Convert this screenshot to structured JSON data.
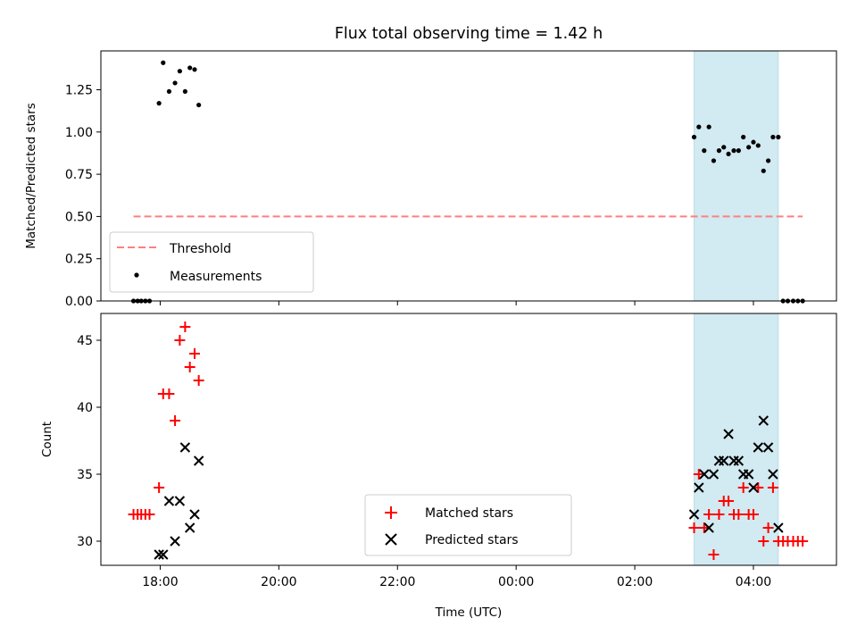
{
  "figure": {
    "title": "Flux total observing time = 1.42 h"
  },
  "chart_data": [
    {
      "type": "scatter",
      "ylabel": "Matched/Predicted stars",
      "ylim": [
        0,
        1.48
      ],
      "yticks": [
        0.0,
        0.25,
        0.5,
        0.75,
        1.0,
        1.25
      ],
      "ytick_labels": [
        "0.00",
        "0.25",
        "0.50",
        "0.75",
        "1.00",
        "1.25"
      ],
      "xlim_hours": [
        17.0,
        29.4
      ],
      "xticks_hours": [
        18,
        20,
        22,
        24,
        26,
        28
      ],
      "shaded_span_hours": [
        27.0,
        28.42
      ],
      "shade_color": "#add8e6",
      "threshold": {
        "name": "Threshold",
        "value": 0.5,
        "x_start": 17.55,
        "x_end": 28.83,
        "color": "#ff7f7f"
      },
      "series": [
        {
          "name": "Measurements",
          "color": "#000000",
          "x": [
            17.55,
            17.62,
            17.68,
            17.75,
            17.82,
            17.98,
            18.05,
            18.15,
            18.25,
            18.33,
            18.42,
            18.5,
            18.58,
            18.65,
            27.0,
            27.08,
            27.17,
            27.25,
            27.33,
            27.42,
            27.5,
            27.58,
            27.67,
            27.75,
            27.83,
            27.92,
            28.0,
            28.08,
            28.17,
            28.25,
            28.33,
            28.42,
            28.5,
            28.58,
            28.67,
            28.75,
            28.83
          ],
          "y": [
            0,
            0,
            0,
            0,
            0,
            1.17,
            1.41,
            1.24,
            1.29,
            1.36,
            1.24,
            1.38,
            1.37,
            1.16,
            0.97,
            1.03,
            0.89,
            1.03,
            0.83,
            0.89,
            0.91,
            0.87,
            0.89,
            0.89,
            0.97,
            0.91,
            0.94,
            0.92,
            0.77,
            0.83,
            0.97,
            0.97,
            0,
            0,
            0,
            0,
            0
          ]
        }
      ],
      "legend": {
        "placement": "lower-left",
        "entries": [
          "Threshold",
          "Measurements"
        ]
      }
    },
    {
      "type": "scatter",
      "xlabel": "Time (UTC)",
      "ylabel": "Count",
      "ylim": [
        28.2,
        47.0
      ],
      "yticks": [
        30,
        35,
        40,
        45
      ],
      "xlim_hours": [
        17.0,
        29.4
      ],
      "xticks_hours": [
        18,
        20,
        22,
        24,
        26,
        28
      ],
      "xtick_labels": [
        "18:00",
        "20:00",
        "22:00",
        "00:00",
        "02:00",
        "04:00"
      ],
      "shaded_span_hours": [
        27.0,
        28.42
      ],
      "shade_color": "#add8e6",
      "series": [
        {
          "name": "Matched stars",
          "marker": "plus",
          "color": "#ff0000",
          "x": [
            17.55,
            17.62,
            17.68,
            17.75,
            17.82,
            17.98,
            18.05,
            18.15,
            18.25,
            18.33,
            18.42,
            18.5,
            18.58,
            18.65,
            27.0,
            27.08,
            27.17,
            27.25,
            27.33,
            27.42,
            27.5,
            27.58,
            27.67,
            27.75,
            27.83,
            27.92,
            28.0,
            28.08,
            28.17,
            28.25,
            28.33,
            28.42,
            28.5,
            28.58,
            28.67,
            28.75,
            28.83
          ],
          "y": [
            32,
            32,
            32,
            32,
            32,
            34,
            41,
            41,
            39,
            45,
            46,
            43,
            44,
            42,
            31,
            35,
            31,
            32,
            29,
            32,
            33,
            33,
            32,
            32,
            34,
            32,
            32,
            34,
            30,
            31,
            34,
            30,
            30,
            30,
            30,
            30,
            30
          ]
        },
        {
          "name": "Predicted stars",
          "marker": "x",
          "color": "#000000",
          "x": [
            17.98,
            18.05,
            18.15,
            18.25,
            18.33,
            18.42,
            18.5,
            18.58,
            18.65,
            27.0,
            27.08,
            27.17,
            27.25,
            27.33,
            27.42,
            27.5,
            27.58,
            27.67,
            27.75,
            27.83,
            27.92,
            28.0,
            28.08,
            28.17,
            28.25,
            28.33,
            28.42
          ],
          "y": [
            29,
            29,
            33,
            30,
            33,
            37,
            31,
            32,
            36,
            32,
            34,
            35,
            31,
            35,
            36,
            36,
            38,
            36,
            36,
            35,
            35,
            34,
            37,
            39,
            37,
            35,
            31
          ]
        }
      ],
      "legend": {
        "placement": "lower-center",
        "entries": [
          "Matched stars",
          "Predicted stars"
        ]
      }
    }
  ]
}
